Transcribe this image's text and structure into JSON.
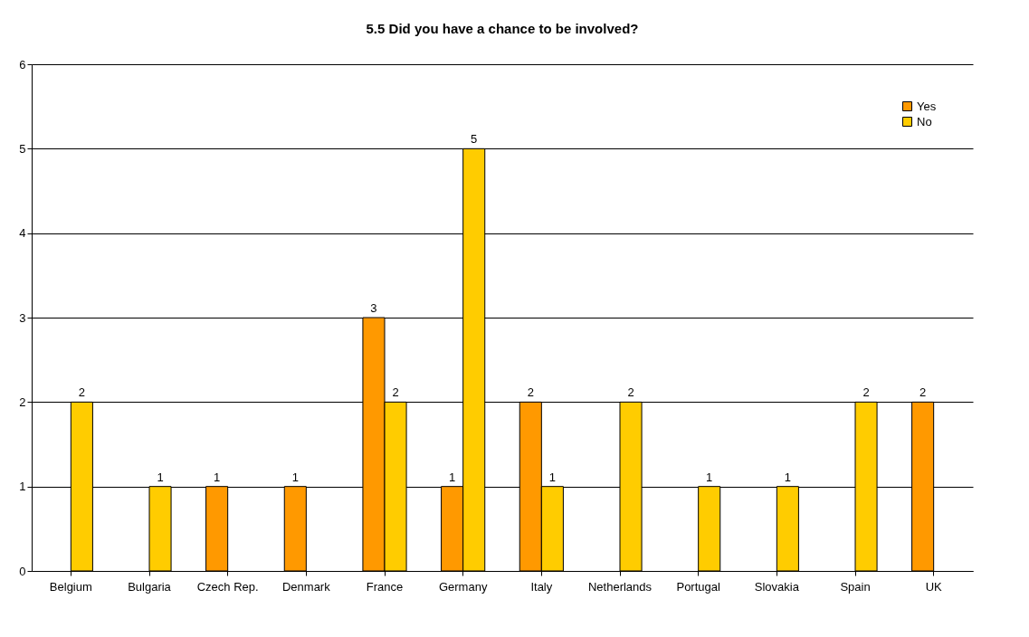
{
  "chart_data": {
    "type": "bar",
    "title": "5.5 Did you have a chance to be involved?",
    "categories": [
      "Belgium",
      "Bulgaria",
      "Czech Rep.",
      "Denmark",
      "France",
      "Germany",
      "Italy",
      "Netherlands",
      "Portugal",
      "Slovakia",
      "Spain",
      "UK"
    ],
    "series": [
      {
        "name": "Yes",
        "color": "#ff9900",
        "values": [
          null,
          null,
          1,
          1,
          3,
          1,
          2,
          null,
          null,
          null,
          null,
          2
        ]
      },
      {
        "name": "No",
        "color": "#ffcc00",
        "values": [
          2,
          1,
          null,
          null,
          2,
          5,
          1,
          2,
          1,
          1,
          2,
          null
        ]
      }
    ],
    "ylim": [
      0,
      6
    ],
    "yticks": [
      0,
      1,
      2,
      3,
      4,
      5,
      6
    ],
    "grid": "y",
    "legend": "top right",
    "data_labels": true
  }
}
